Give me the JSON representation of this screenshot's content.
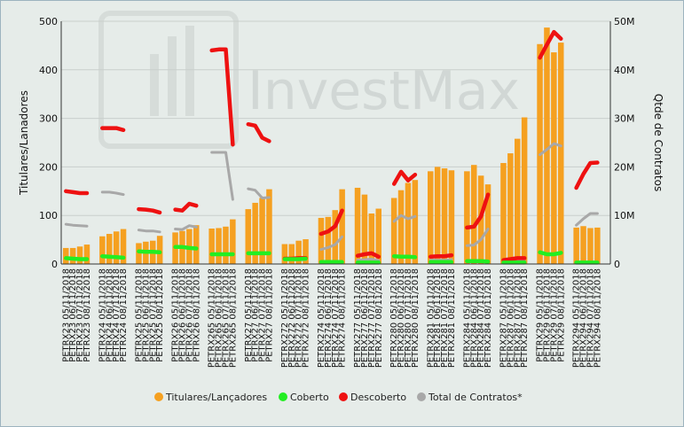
{
  "chart_data": {
    "type": "bar",
    "watermark": "InvestMax",
    "ylabel": "Titulares/Lanadores",
    "y2label": "Qtde de Contratos",
    "ylim": [
      0,
      500
    ],
    "y2lim": [
      0,
      50000000
    ],
    "yticks": [
      "0",
      "100",
      "200",
      "300",
      "400",
      "500"
    ],
    "y2ticks": [
      "0",
      "10M",
      "20M",
      "30M",
      "40M",
      "50M"
    ],
    "legend_position": "bottom",
    "colors": {
      "titulares": "#f5a020",
      "coberto": "#22ee22",
      "descoberto": "#ee1111",
      "total": "#a8a8a8"
    },
    "series_names": {
      "titulares": "Titulares/Lançadores",
      "coberto": "Coberto",
      "descoberto": "Descoberto",
      "total": "Total de Contratos*"
    },
    "groups": [
      {
        "labels": [
          "PETRX23 05/11/2018",
          "PETRX23 06/11/2018",
          "PETRX23 07/11/2018",
          "PETRX23 08/11/2018"
        ],
        "titulares": [
          33,
          33,
          36,
          40
        ],
        "coberto": [
          12,
          11,
          10,
          10
        ],
        "descoberto": [
          150,
          148,
          146,
          146
        ],
        "total": [
          82,
          80,
          79,
          78
        ]
      },
      {
        "labels": [
          "PETRX24 05/11/2018",
          "PETRX24 06/11/2018",
          "PETRX24 07/11/2018",
          "PETRX24 08/11/2018"
        ],
        "titulares": [
          57,
          62,
          67,
          72
        ],
        "coberto": [
          16,
          15,
          14,
          13
        ],
        "descoberto": [
          280,
          280,
          280,
          276
        ],
        "total": [
          148,
          148,
          146,
          143
        ]
      },
      {
        "labels": [
          "PETRX25 05/11/2018",
          "PETRX25 06/11/2018",
          "PETRX25 07/11/2018",
          "PETRX25 08/11/2018"
        ],
        "titulares": [
          43,
          46,
          48,
          58
        ],
        "coberto": [
          26,
          25,
          25,
          24
        ],
        "descoberto": [
          113,
          112,
          110,
          106
        ],
        "total": [
          70,
          68,
          68,
          66
        ]
      },
      {
        "labels": [
          "PETRX26 05/11/2018",
          "PETRX26 06/11/2018",
          "PETRX26 07/11/2018",
          "PETRX26 08/11/2018"
        ],
        "titulares": [
          65,
          68,
          72,
          80
        ],
        "coberto": [
          35,
          35,
          33,
          32
        ],
        "descoberto": [
          112,
          110,
          124,
          120
        ],
        "total": [
          72,
          71,
          79,
          76
        ]
      },
      {
        "labels": [
          "PETRX265 05/11/2018",
          "PETRX265 06/11/2018",
          "PETRX265 07/11/2018",
          "PETRX265 08/11/2018"
        ],
        "titulares": [
          73,
          74,
          77,
          92
        ],
        "coberto": [
          20,
          20,
          20,
          20
        ],
        "descoberto": [
          440,
          442,
          442,
          246
        ],
        "total": [
          230,
          230,
          230,
          133
        ]
      },
      {
        "labels": [
          "PETRX27 05/11/2018",
          "PETRX27 06/11/2018",
          "PETRX27 07/11/2018",
          "PETRX27 08/11/2018"
        ],
        "titulares": [
          113,
          126,
          136,
          154
        ],
        "coberto": [
          22,
          22,
          22,
          22
        ],
        "descoberto": [
          288,
          285,
          260,
          253
        ],
        "total": [
          155,
          152,
          136,
          137
        ]
      },
      {
        "labels": [
          "PETRX272 05/11/2018",
          "PETRX272 06/11/2018",
          "PETRX272 07/11/2018",
          "PETRX272 08/11/2018"
        ],
        "titulares": [
          41,
          41,
          48,
          51
        ],
        "coberto": [
          10,
          10,
          10,
          11
        ],
        "descoberto": [
          11,
          11,
          12,
          12
        ],
        "total": [
          9,
          9,
          9,
          9
        ]
      },
      {
        "labels": [
          "PETRX274 05/11/2018",
          "PETRX274 06/11/2018",
          "PETRX274 07/11/2018",
          "PETRX274 08/11/2018"
        ],
        "titulares": [
          95,
          97,
          111,
          154
        ],
        "coberto": [
          4,
          4,
          4,
          4
        ],
        "descoberto": [
          62,
          67,
          78,
          110
        ],
        "total": [
          30,
          34,
          40,
          56
        ]
      },
      {
        "labels": [
          "PETRX277 05/11/2018",
          "PETRX277 06/11/2018",
          "PETRX277 07/11/2018",
          "PETRX277 08/11/2018"
        ],
        "titulares": [
          157,
          143,
          104,
          114
        ],
        "coberto": [
          3,
          3,
          3,
          3
        ],
        "descoberto": [
          17,
          20,
          22,
          15
        ],
        "total": [
          8,
          9,
          10,
          7
        ]
      },
      {
        "labels": [
          "PETRX280 05/11/2018",
          "PETRX280 06/11/2018",
          "PETRX280 07/11/2018",
          "PETRX280 08/11/2018"
        ],
        "titulares": [
          136,
          152,
          167,
          173
        ],
        "coberto": [
          16,
          15,
          15,
          14
        ],
        "descoberto": [
          165,
          190,
          172,
          184
        ],
        "total": [
          88,
          100,
          93,
          98
        ]
      },
      {
        "labels": [
          "PETRX281 05/11/2018",
          "PETRX281 06/11/2018",
          "PETRX281 07/11/2018",
          "PETRX281 08/11/2018"
        ],
        "titulares": [
          191,
          200,
          197,
          193
        ],
        "coberto": [
          4,
          4,
          4,
          4
        ],
        "descoberto": [
          15,
          16,
          16,
          18
        ],
        "total": [
          8,
          8,
          8,
          9
        ]
      },
      {
        "labels": [
          "PETRX284 05/11/2018",
          "PETRX284 06/11/2018",
          "PETRX284 07/11/2018",
          "PETRX284 08/11/2018"
        ],
        "titulares": [
          191,
          204,
          182,
          164
        ],
        "coberto": [
          6,
          6,
          6,
          5
        ],
        "descoberto": [
          75,
          77,
          98,
          143
        ],
        "total": [
          38,
          39,
          50,
          72
        ]
      },
      {
        "labels": [
          "PETRX287 05/11/2018",
          "PETRX287 06/11/2018",
          "PETRX287 07/11/2018",
          "PETRX287 08/11/2018"
        ],
        "titulares": [
          208,
          228,
          258,
          302
        ],
        "coberto": [
          3,
          3,
          3,
          3
        ],
        "descoberto": [
          8,
          10,
          12,
          12
        ],
        "total": [
          4,
          5,
          6,
          6
        ]
      },
      {
        "labels": [
          "PETRX29 05/11/2018",
          "PETRX29 06/11/2018",
          "PETRX29 07/11/2018",
          "PETRX29 08/11/2018"
        ],
        "titulares": [
          453,
          487,
          436,
          456
        ],
        "coberto": [
          24,
          20,
          20,
          23
        ],
        "descoberto": [
          425,
          452,
          478,
          464
        ],
        "total": [
          225,
          236,
          248,
          243
        ]
      },
      {
        "labels": [
          "PETRX294 05/11/2018",
          "PETRX294 06/11/2018",
          "PETRX294 07/11/2018",
          "PETRX294 08/11/2018"
        ],
        "titulares": [
          75,
          78,
          74,
          75
        ],
        "coberto": [
          3,
          3,
          3,
          3
        ],
        "descoberto": [
          157,
          185,
          208,
          209
        ],
        "total": [
          80,
          93,
          104,
          104
        ]
      }
    ]
  }
}
